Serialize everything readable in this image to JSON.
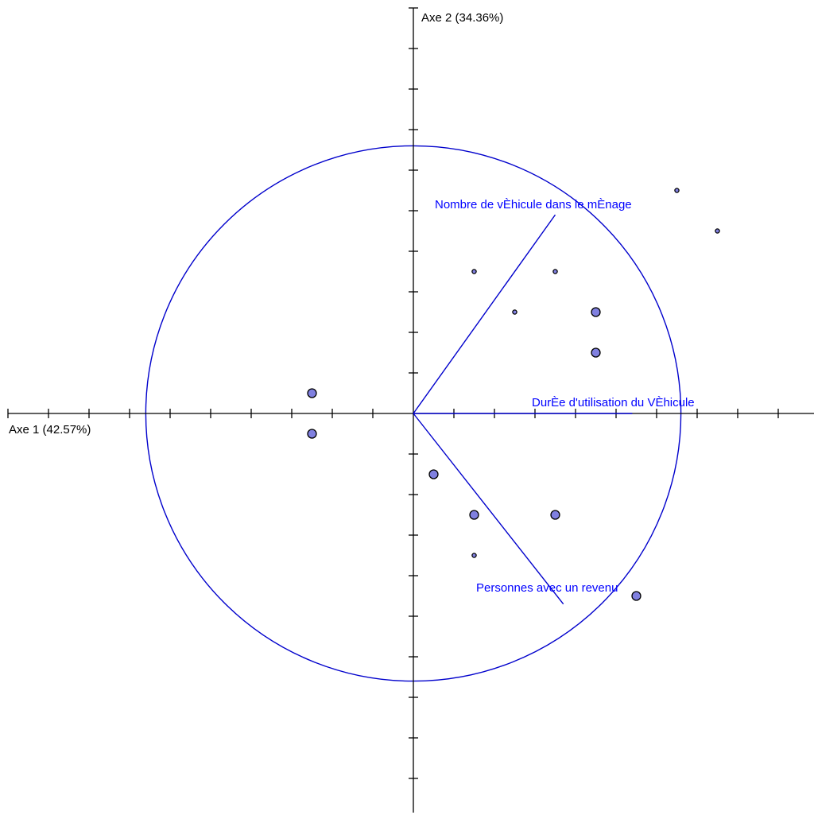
{
  "chart_data": {
    "type": "scatter",
    "title": "",
    "xlabel": "Axe 1 (42.57%)",
    "ylabel": "Axe 2 (34.36%)",
    "xlim": [
      -10,
      10
    ],
    "ylim": [
      -10,
      10
    ],
    "tick_step": 1,
    "grid": false,
    "correlation_circle_radius": 6.6,
    "colors": {
      "axes": "#000000",
      "circle": "#0000cc",
      "vectors": "#0000cc",
      "labels": "#0000ff",
      "points_fill": "#8080e0",
      "points_stroke": "#000000"
    },
    "variables": [
      {
        "label": "Nombre de vÈhicule dans le mÈnage",
        "x": 3.5,
        "y": 4.9
      },
      {
        "label": "DurÈe d'utilisation du VÈhicule",
        "x": 5.4,
        "y": 0.0
      },
      {
        "label": "Personnes avec un revenu",
        "x": 3.7,
        "y": -4.7
      }
    ],
    "points": [
      {
        "x": 6.5,
        "y": 5.5,
        "size": "small"
      },
      {
        "x": 7.5,
        "y": 4.5,
        "size": "small"
      },
      {
        "x": 1.5,
        "y": 3.5,
        "size": "small"
      },
      {
        "x": 3.5,
        "y": 3.5,
        "size": "small"
      },
      {
        "x": 2.5,
        "y": 2.5,
        "size": "small"
      },
      {
        "x": 4.5,
        "y": 2.5,
        "size": "large"
      },
      {
        "x": 4.5,
        "y": 1.5,
        "size": "large"
      },
      {
        "x": -2.5,
        "y": 0.5,
        "size": "large"
      },
      {
        "x": -2.5,
        "y": -0.5,
        "size": "large"
      },
      {
        "x": 0.5,
        "y": -1.5,
        "size": "large"
      },
      {
        "x": 1.5,
        "y": -2.5,
        "size": "large"
      },
      {
        "x": 3.5,
        "y": -2.5,
        "size": "large"
      },
      {
        "x": 1.5,
        "y": -3.5,
        "size": "small"
      },
      {
        "x": 5.5,
        "y": -4.5,
        "size": "large"
      }
    ]
  }
}
